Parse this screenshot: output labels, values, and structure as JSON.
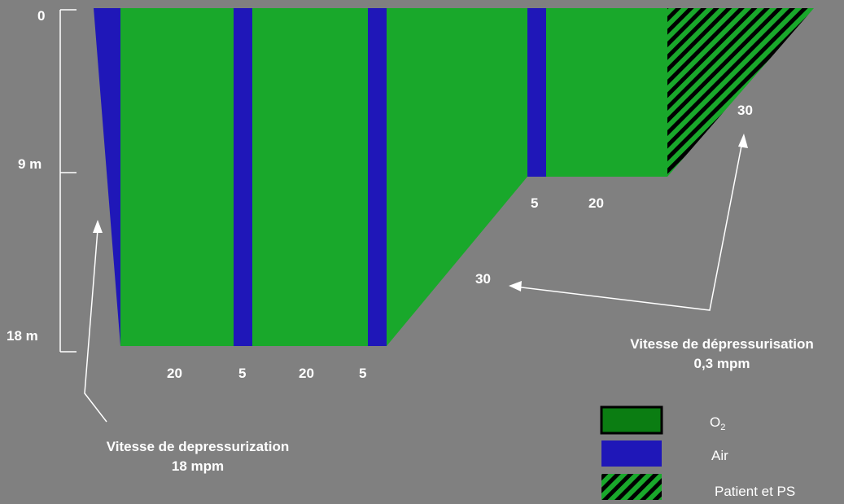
{
  "colors": {
    "background": "#808080",
    "oxygen": "#19a82b",
    "oxygen_legend": "#0b7d12",
    "air": "#1f17b8",
    "hatch_dark": "#000000",
    "text": "#ffffff"
  },
  "depth_axis": {
    "labels": [
      "0",
      "9 m",
      "18 m"
    ]
  },
  "segments": {
    "bottom_durations": [
      "20",
      "5",
      "20",
      "5"
    ],
    "stop_9m_durations": [
      "5",
      "20"
    ],
    "ascent_18_to_9_duration": "30",
    "ascent_9_to_0_duration": "30"
  },
  "annotations": {
    "compression_rate": {
      "line1": "Vitesse de depressurization",
      "line2": "18 mpm"
    },
    "decompression_rate": {
      "line1": "Vitesse de dépressurisation",
      "line2": "0,3 mpm"
    }
  },
  "legend": {
    "o2_main": "O",
    "o2_sub": "2",
    "air": "Air",
    "patient": "Patient et PS"
  }
}
